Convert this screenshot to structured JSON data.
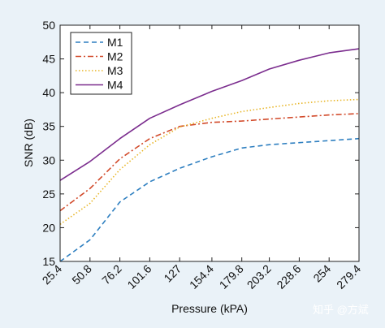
{
  "chart_data": {
    "type": "line",
    "xlabel": "Pressure (kPA)",
    "ylabel": "SNR (dB)",
    "x_ticks": [
      "25.4",
      "50.8",
      "76.2",
      "101.6",
      "127",
      "154.4",
      "179.8",
      "203.2",
      "228.6",
      "254",
      "279.4"
    ],
    "x": [
      25.4,
      50.8,
      76.2,
      101.6,
      127,
      154.4,
      179.8,
      203.2,
      228.6,
      254,
      279.4
    ],
    "xlim": [
      25.4,
      279.4
    ],
    "ylim": [
      15,
      50
    ],
    "y_ticks": [
      15,
      20,
      25,
      30,
      35,
      40,
      45,
      50
    ],
    "legend_position": "top-left",
    "grid": false,
    "series": [
      {
        "name": "M1",
        "color": "#2e7fc0",
        "dash": "dashed",
        "values": [
          15.0,
          18.2,
          23.8,
          26.8,
          28.8,
          30.5,
          31.8,
          32.3,
          32.6,
          32.9,
          33.2
        ]
      },
      {
        "name": "M2",
        "color": "#d24a2a",
        "dash": "dashdot",
        "values": [
          22.5,
          25.8,
          30.2,
          33.2,
          35.0,
          35.6,
          35.8,
          36.1,
          36.4,
          36.7,
          36.9
        ]
      },
      {
        "name": "M3",
        "color": "#e8b628",
        "dash": "dotted",
        "values": [
          20.5,
          23.6,
          28.6,
          32.3,
          34.9,
          36.2,
          37.2,
          37.8,
          38.4,
          38.8,
          39.0
        ]
      },
      {
        "name": "M4",
        "color": "#7b2d8e",
        "dash": "solid",
        "values": [
          27.0,
          29.8,
          33.2,
          36.2,
          38.2,
          40.2,
          41.8,
          43.5,
          44.8,
          45.9,
          46.5
        ]
      }
    ]
  },
  "watermark": "知乎 @方斌"
}
